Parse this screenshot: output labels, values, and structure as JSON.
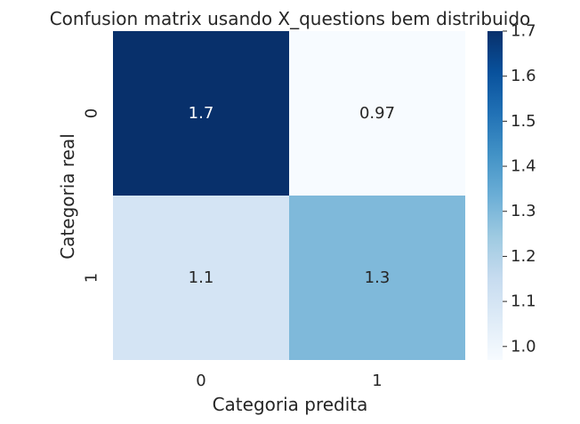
{
  "chart_data": {
    "type": "heatmap",
    "title": "Confusion matrix usando X_questions bem distribuido",
    "xlabel": "Categoria predita",
    "ylabel": "Categoria real",
    "x_categories": [
      "0",
      "1"
    ],
    "y_categories": [
      "0",
      "1"
    ],
    "values": [
      [
        1.7,
        0.97
      ],
      [
        1.1,
        1.3
      ]
    ],
    "value_labels": [
      [
        "1.7",
        "0.97"
      ],
      [
        "1.1",
        "1.3"
      ]
    ],
    "colormap": "Blues",
    "colorbar": {
      "range": [
        0.97,
        1.7
      ],
      "ticks": [
        "1.0",
        "1.1",
        "1.2",
        "1.3",
        "1.4",
        "1.5",
        "1.6",
        "1.7"
      ]
    },
    "colors": {
      "low": "#f7fbff",
      "high": "#08306b",
      "text_dark": "#262626",
      "text_light": "#ffffff"
    },
    "grid": false
  }
}
